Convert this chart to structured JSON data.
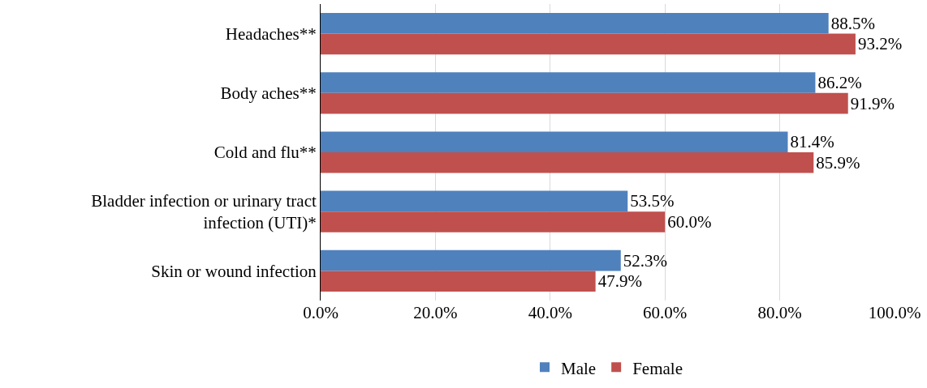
{
  "chart_data": {
    "type": "bar",
    "orientation": "horizontal",
    "categories": [
      "Headaches**",
      "Body aches**",
      "Cold and flu**",
      "Bladder infection or urinary tract\ninfection (UTI)*",
      "Skin or wound infection"
    ],
    "series": [
      {
        "name": "Male",
        "color": "#4f81bd",
        "values": [
          88.5,
          86.2,
          81.4,
          53.5,
          52.3
        ],
        "value_labels": [
          "88.5%",
          "86.2%",
          "81.4%",
          "53.5%",
          "52.3%"
        ]
      },
      {
        "name": "Female",
        "color": "#c0504d",
        "values": [
          93.2,
          91.9,
          85.9,
          60.0,
          47.9
        ],
        "value_labels": [
          "93.2%",
          "91.9%",
          "85.9%",
          "60.0%",
          "47.9%"
        ]
      }
    ],
    "xlim": [
      0,
      100
    ],
    "xticks": [
      {
        "value": 0,
        "label": "0.0%"
      },
      {
        "value": 20,
        "label": "20.0%"
      },
      {
        "value": 40,
        "label": "40.0%"
      },
      {
        "value": 60,
        "label": "60.0%"
      },
      {
        "value": 80,
        "label": "80.0%"
      },
      {
        "value": 100,
        "label": "100.0%"
      }
    ],
    "grid": "x",
    "legend": "bottom"
  }
}
